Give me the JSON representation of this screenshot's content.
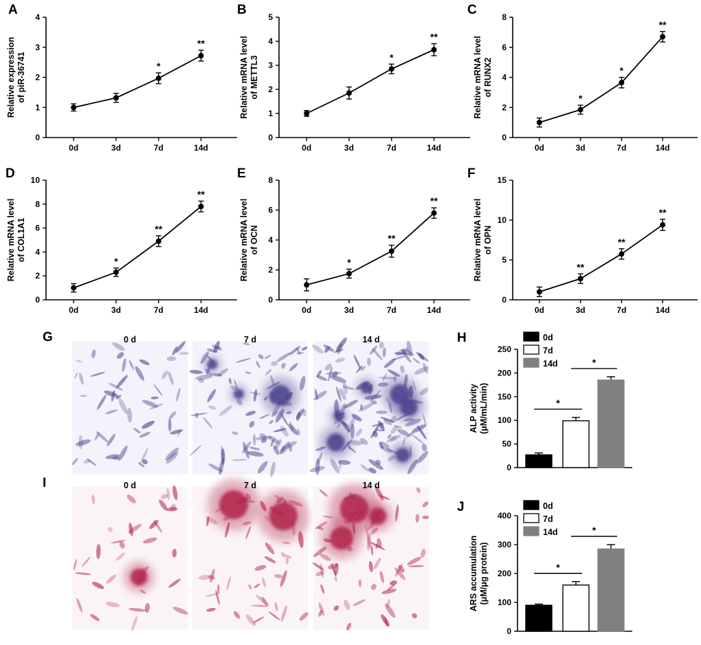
{
  "colors": {
    "axis": "#000000",
    "bar_black": "#000000",
    "bar_white": "#ffffff",
    "bar_gray": "#808080",
    "stain_purple": "#4a3f8c",
    "stain_red": "#b0204a"
  },
  "chart_data": [
    {
      "id": "A",
      "panel": "A",
      "type": "line",
      "ylabel": [
        "Relative expression",
        "of piR-36741"
      ],
      "categories": [
        "0d",
        "3d",
        "7d",
        "14d"
      ],
      "values": [
        1.0,
        1.32,
        1.97,
        2.72
      ],
      "errors": [
        0.12,
        0.15,
        0.18,
        0.18
      ],
      "sig": [
        "",
        "",
        "*",
        "**"
      ],
      "ylim": [
        0,
        4
      ],
      "yticks": [
        0,
        1,
        2,
        3,
        4
      ]
    },
    {
      "id": "B",
      "panel": "B",
      "type": "line",
      "ylabel": [
        "Relative mRNA level",
        "of METTL3"
      ],
      "categories": [
        "0d",
        "3d",
        "7d",
        "14d"
      ],
      "values": [
        1.0,
        1.85,
        2.85,
        3.65
      ],
      "errors": [
        0.12,
        0.25,
        0.2,
        0.25
      ],
      "sig": [
        "",
        "",
        "*",
        "**"
      ],
      "ylim": [
        0,
        5
      ],
      "yticks": [
        0,
        1,
        2,
        3,
        4,
        5
      ]
    },
    {
      "id": "C",
      "panel": "C",
      "type": "line",
      "ylabel": [
        "Relative mRNA level",
        "of RUNX2"
      ],
      "categories": [
        "0d",
        "3d",
        "7d",
        "14d"
      ],
      "values": [
        1.0,
        1.85,
        3.65,
        6.7
      ],
      "errors": [
        0.3,
        0.3,
        0.35,
        0.35
      ],
      "sig": [
        "",
        "*",
        "*",
        "**"
      ],
      "ylim": [
        0,
        8
      ],
      "yticks": [
        0,
        2,
        4,
        6,
        8
      ]
    },
    {
      "id": "D",
      "panel": "D",
      "type": "line",
      "ylabel": [
        "Relative mRNA level",
        "of COL1A1"
      ],
      "categories": [
        "0d",
        "3d",
        "7d",
        "14d"
      ],
      "values": [
        1.0,
        2.3,
        4.9,
        7.8
      ],
      "errors": [
        0.35,
        0.35,
        0.45,
        0.45
      ],
      "sig": [
        "",
        "*",
        "**",
        "**"
      ],
      "ylim": [
        0,
        10
      ],
      "yticks": [
        0,
        2,
        4,
        6,
        8,
        10
      ]
    },
    {
      "id": "E",
      "panel": "E",
      "type": "line",
      "ylabel": [
        "Relative mRNA level",
        "of OCN"
      ],
      "categories": [
        "0d",
        "3d",
        "7d",
        "14d"
      ],
      "values": [
        1.0,
        1.75,
        3.25,
        5.8
      ],
      "errors": [
        0.4,
        0.3,
        0.4,
        0.35
      ],
      "sig": [
        "",
        "*",
        "**",
        "**"
      ],
      "ylim": [
        0,
        8
      ],
      "yticks": [
        0,
        2,
        4,
        6,
        8
      ]
    },
    {
      "id": "F",
      "panel": "F",
      "type": "line",
      "ylabel": [
        "Relative mRNA level",
        "of OPN"
      ],
      "categories": [
        "0d",
        "3d",
        "7d",
        "14d"
      ],
      "values": [
        1.0,
        2.65,
        5.75,
        9.4
      ],
      "errors": [
        0.6,
        0.6,
        0.65,
        0.7
      ],
      "sig": [
        "",
        "**",
        "**",
        "**"
      ],
      "ylim": [
        0,
        15
      ],
      "yticks": [
        0,
        5,
        10,
        15
      ]
    },
    {
      "id": "H",
      "panel": "H",
      "type": "bar",
      "ylabel": [
        "ALP activity",
        "(μM/mL/min)"
      ],
      "categories": [
        "0d",
        "7d",
        "14d"
      ],
      "values": [
        27,
        99,
        185
      ],
      "errors": [
        4,
        7,
        7
      ],
      "ylim": [
        0,
        250
      ],
      "yticks": [
        0,
        50,
        100,
        150,
        200,
        250
      ],
      "legend": [
        "0d",
        "7d",
        "14d"
      ],
      "sig_brackets": [
        {
          "from": 0,
          "to": 1,
          "label": "*"
        },
        {
          "from": 1,
          "to": 2,
          "label": "*"
        }
      ]
    },
    {
      "id": "J",
      "panel": "J",
      "type": "bar",
      "ylabel": [
        "ARS accumulation",
        "(μM/μg protein)"
      ],
      "categories": [
        "0d",
        "7d",
        "14d"
      ],
      "values": [
        90,
        160,
        285
      ],
      "errors": [
        4,
        12,
        15
      ],
      "ylim": [
        0,
        400
      ],
      "yticks": [
        0,
        100,
        200,
        300,
        400
      ],
      "legend": [
        "0d",
        "7d",
        "14d"
      ],
      "sig_brackets": [
        {
          "from": 0,
          "to": 1,
          "label": "*"
        },
        {
          "from": 1,
          "to": 2,
          "label": "*"
        }
      ]
    }
  ],
  "image_panels": [
    {
      "panel": "G",
      "stain": "purple",
      "labels": [
        "0 d",
        "7 d",
        "14 d"
      ]
    },
    {
      "panel": "I",
      "stain": "red",
      "labels": [
        "0 d",
        "7 d",
        "14 d"
      ]
    }
  ]
}
